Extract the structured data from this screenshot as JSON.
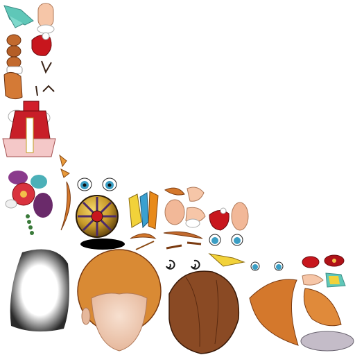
{
  "sheet": {
    "kind": "sprite-texture-atlas",
    "background": "#ffffff",
    "parts": [
      {
        "id": "scarf-piece",
        "icon": "scarf-icon",
        "color": "#5fc7b8"
      },
      {
        "id": "hand-top",
        "icon": "hand-icon",
        "color": "#f6c6a8"
      },
      {
        "id": "red-pouch-1",
        "icon": "pouch-icon",
        "color": "#c8161d"
      },
      {
        "id": "braid",
        "icon": "braid-icon",
        "color": "#c26a2e"
      },
      {
        "id": "eyebrow-set",
        "icon": "eyebrow-icon",
        "color": "#3a2418"
      },
      {
        "id": "dress",
        "icon": "dress-icon",
        "color": "#d11f2a"
      },
      {
        "id": "flower-ornament",
        "icon": "flower-icon",
        "color": "#d9323e"
      },
      {
        "id": "eyes-large",
        "icon": "eye-icon",
        "color": "#3a9ec4"
      },
      {
        "id": "ornate-ball",
        "icon": "ball-icon",
        "color": "#4b2a6b"
      },
      {
        "id": "ball-shadow",
        "icon": "shadow-icon",
        "color": "#000000"
      },
      {
        "id": "head-mask",
        "icon": "mask-icon",
        "color": "#b8b8b8"
      },
      {
        "id": "face-front",
        "icon": "face-icon",
        "color": "#f3d6c4"
      },
      {
        "id": "hair-back",
        "icon": "hair-icon",
        "color": "#8a4a24"
      },
      {
        "id": "hair-side",
        "icon": "hair-icon",
        "color": "#d4782c"
      },
      {
        "id": "hand-open",
        "icon": "hand-icon",
        "color": "#f6c6a8"
      },
      {
        "id": "ribbon-yellow",
        "icon": "ribbon-icon",
        "color": "#f2d23a"
      },
      {
        "id": "eyes-small",
        "icon": "eye-icon",
        "color": "#3a9ec4"
      },
      {
        "id": "swirl-eyes",
        "icon": "swirl-icon",
        "color": "#1a1a1a"
      },
      {
        "id": "red-pouch-2",
        "icon": "pouch-icon",
        "color": "#c8161d"
      },
      {
        "id": "plate",
        "icon": "plate-icon",
        "color": "#c4bcc8"
      }
    ]
  }
}
